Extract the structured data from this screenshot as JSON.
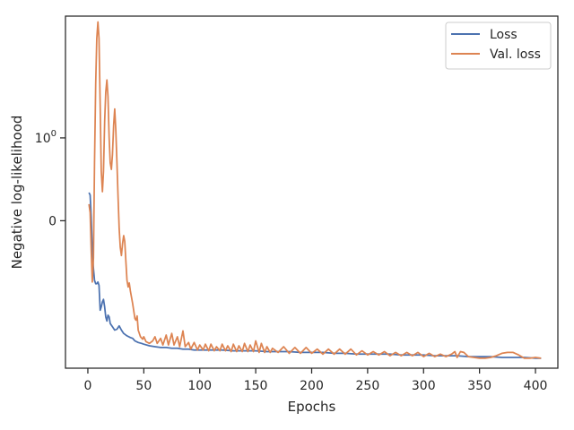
{
  "chart_data": {
    "type": "line",
    "xlabel": "Epochs",
    "ylabel": "Negative log-likelihood",
    "xlim": [
      -20,
      420
    ],
    "xticks": [
      0,
      50,
      100,
      150,
      200,
      250,
      300,
      350,
      400
    ],
    "ylim": [
      -1.78,
      2.47
    ],
    "yticks": [
      {
        "value": 0,
        "label": "0",
        "sup": ""
      },
      {
        "value": 1,
        "label": "10",
        "sup": "0"
      }
    ],
    "grid": false,
    "legend_position": "top-right",
    "colors": {
      "Loss": "#4c72b0",
      "Val. loss": "#dd8452",
      "frame": "#262626"
    },
    "series": [
      {
        "name": "Loss",
        "points": [
          [
            1,
            0.34
          ],
          [
            2,
            0.31
          ],
          [
            3,
            0.05
          ],
          [
            4,
            -0.35
          ],
          [
            5,
            -0.58
          ],
          [
            6,
            -0.72
          ],
          [
            7,
            -0.76
          ],
          [
            8,
            -0.76
          ],
          [
            9,
            -0.74
          ],
          [
            10,
            -0.78
          ],
          [
            11,
            -1.08
          ],
          [
            12,
            -1.04
          ],
          [
            13,
            -0.98
          ],
          [
            14,
            -0.95
          ],
          [
            15,
            -1.04
          ],
          [
            16,
            -1.16
          ],
          [
            17,
            -1.21
          ],
          [
            18,
            -1.14
          ],
          [
            19,
            -1.16
          ],
          [
            20,
            -1.24
          ],
          [
            22,
            -1.28
          ],
          [
            24,
            -1.32
          ],
          [
            26,
            -1.31
          ],
          [
            28,
            -1.27
          ],
          [
            30,
            -1.32
          ],
          [
            32,
            -1.36
          ],
          [
            35,
            -1.39
          ],
          [
            38,
            -1.41
          ],
          [
            40,
            -1.42
          ],
          [
            42,
            -1.45
          ],
          [
            45,
            -1.47
          ],
          [
            48,
            -1.48
          ],
          [
            50,
            -1.49
          ],
          [
            55,
            -1.51
          ],
          [
            60,
            -1.52
          ],
          [
            65,
            -1.53
          ],
          [
            70,
            -1.53
          ],
          [
            75,
            -1.54
          ],
          [
            80,
            -1.54
          ],
          [
            85,
            -1.55
          ],
          [
            90,
            -1.55
          ],
          [
            95,
            -1.56
          ],
          [
            100,
            -1.56
          ],
          [
            110,
            -1.56
          ],
          [
            120,
            -1.56
          ],
          [
            130,
            -1.57
          ],
          [
            140,
            -1.57
          ],
          [
            150,
            -1.57
          ],
          [
            160,
            -1.58
          ],
          [
            170,
            -1.58
          ],
          [
            180,
            -1.58
          ],
          [
            190,
            -1.59
          ],
          [
            200,
            -1.59
          ],
          [
            210,
            -1.59
          ],
          [
            220,
            -1.6
          ],
          [
            230,
            -1.6
          ],
          [
            240,
            -1.61
          ],
          [
            250,
            -1.61
          ],
          [
            260,
            -1.61
          ],
          [
            270,
            -1.61
          ],
          [
            280,
            -1.62
          ],
          [
            290,
            -1.62
          ],
          [
            300,
            -1.62
          ],
          [
            310,
            -1.63
          ],
          [
            320,
            -1.63
          ],
          [
            330,
            -1.63
          ],
          [
            340,
            -1.64
          ],
          [
            350,
            -1.64
          ],
          [
            360,
            -1.64
          ],
          [
            370,
            -1.65
          ],
          [
            380,
            -1.65
          ],
          [
            390,
            -1.65
          ],
          [
            400,
            -1.66
          ],
          [
            405,
            -1.66
          ]
        ]
      },
      {
        "name": "Val. loss",
        "points": [
          [
            1,
            0.2
          ],
          [
            2,
            0.1
          ],
          [
            3,
            -0.35
          ],
          [
            4,
            -0.74
          ],
          [
            5,
            -0.45
          ],
          [
            6,
            0.7
          ],
          [
            7,
            1.65
          ],
          [
            8,
            2.2
          ],
          [
            9,
            2.4
          ],
          [
            10,
            2.2
          ],
          [
            11,
            1.4
          ],
          [
            12,
            0.6
          ],
          [
            13,
            0.35
          ],
          [
            14,
            0.6
          ],
          [
            15,
            1.2
          ],
          [
            16,
            1.55
          ],
          [
            17,
            1.7
          ],
          [
            18,
            1.5
          ],
          [
            19,
            1.0
          ],
          [
            20,
            0.7
          ],
          [
            21,
            0.62
          ],
          [
            22,
            0.8
          ],
          [
            23,
            1.15
          ],
          [
            24,
            1.35
          ],
          [
            25,
            1.1
          ],
          [
            26,
            0.7
          ],
          [
            27,
            0.3
          ],
          [
            28,
            -0.1
          ],
          [
            29,
            -0.32
          ],
          [
            30,
            -0.42
          ],
          [
            31,
            -0.28
          ],
          [
            32,
            -0.18
          ],
          [
            33,
            -0.25
          ],
          [
            34,
            -0.5
          ],
          [
            35,
            -0.72
          ],
          [
            36,
            -0.8
          ],
          [
            37,
            -0.75
          ],
          [
            38,
            -0.85
          ],
          [
            40,
            -1.0
          ],
          [
            42,
            -1.18
          ],
          [
            43,
            -1.2
          ],
          [
            44,
            -1.15
          ],
          [
            45,
            -1.32
          ],
          [
            47,
            -1.4
          ],
          [
            49,
            -1.43
          ],
          [
            50,
            -1.4
          ],
          [
            52,
            -1.46
          ],
          [
            55,
            -1.48
          ],
          [
            58,
            -1.45
          ],
          [
            60,
            -1.4
          ],
          [
            62,
            -1.48
          ],
          [
            65,
            -1.42
          ],
          [
            67,
            -1.5
          ],
          [
            70,
            -1.38
          ],
          [
            72,
            -1.5
          ],
          [
            75,
            -1.36
          ],
          [
            77,
            -1.5
          ],
          [
            80,
            -1.4
          ],
          [
            82,
            -1.52
          ],
          [
            85,
            -1.33
          ],
          [
            87,
            -1.52
          ],
          [
            90,
            -1.47
          ],
          [
            92,
            -1.55
          ],
          [
            95,
            -1.47
          ],
          [
            98,
            -1.56
          ],
          [
            100,
            -1.5
          ],
          [
            103,
            -1.56
          ],
          [
            105,
            -1.49
          ],
          [
            108,
            -1.57
          ],
          [
            110,
            -1.49
          ],
          [
            113,
            -1.57
          ],
          [
            115,
            -1.52
          ],
          [
            118,
            -1.57
          ],
          [
            120,
            -1.49
          ],
          [
            123,
            -1.57
          ],
          [
            125,
            -1.51
          ],
          [
            128,
            -1.58
          ],
          [
            130,
            -1.49
          ],
          [
            133,
            -1.58
          ],
          [
            135,
            -1.51
          ],
          [
            138,
            -1.58
          ],
          [
            140,
            -1.48
          ],
          [
            143,
            -1.58
          ],
          [
            145,
            -1.5
          ],
          [
            148,
            -1.58
          ],
          [
            150,
            -1.45
          ],
          [
            153,
            -1.59
          ],
          [
            155,
            -1.48
          ],
          [
            158,
            -1.59
          ],
          [
            160,
            -1.52
          ],
          [
            163,
            -1.59
          ],
          [
            165,
            -1.54
          ],
          [
            170,
            -1.59
          ],
          [
            175,
            -1.52
          ],
          [
            180,
            -1.6
          ],
          [
            185,
            -1.53
          ],
          [
            190,
            -1.6
          ],
          [
            195,
            -1.53
          ],
          [
            200,
            -1.6
          ],
          [
            205,
            -1.55
          ],
          [
            210,
            -1.61
          ],
          [
            215,
            -1.55
          ],
          [
            220,
            -1.61
          ],
          [
            225,
            -1.55
          ],
          [
            230,
            -1.61
          ],
          [
            235,
            -1.55
          ],
          [
            240,
            -1.62
          ],
          [
            245,
            -1.57
          ],
          [
            250,
            -1.62
          ],
          [
            255,
            -1.58
          ],
          [
            260,
            -1.62
          ],
          [
            265,
            -1.58
          ],
          [
            270,
            -1.63
          ],
          [
            275,
            -1.59
          ],
          [
            280,
            -1.63
          ],
          [
            285,
            -1.59
          ],
          [
            290,
            -1.63
          ],
          [
            295,
            -1.59
          ],
          [
            300,
            -1.64
          ],
          [
            305,
            -1.6
          ],
          [
            310,
            -1.64
          ],
          [
            315,
            -1.61
          ],
          [
            320,
            -1.64
          ],
          [
            325,
            -1.61
          ],
          [
            328,
            -1.58
          ],
          [
            330,
            -1.65
          ],
          [
            333,
            -1.58
          ],
          [
            336,
            -1.59
          ],
          [
            340,
            -1.64
          ],
          [
            345,
            -1.65
          ],
          [
            350,
            -1.66
          ],
          [
            355,
            -1.66
          ],
          [
            360,
            -1.65
          ],
          [
            365,
            -1.63
          ],
          [
            370,
            -1.6
          ],
          [
            375,
            -1.59
          ],
          [
            380,
            -1.59
          ],
          [
            385,
            -1.62
          ],
          [
            390,
            -1.66
          ],
          [
            395,
            -1.66
          ],
          [
            400,
            -1.65
          ],
          [
            405,
            -1.66
          ]
        ]
      }
    ]
  }
}
